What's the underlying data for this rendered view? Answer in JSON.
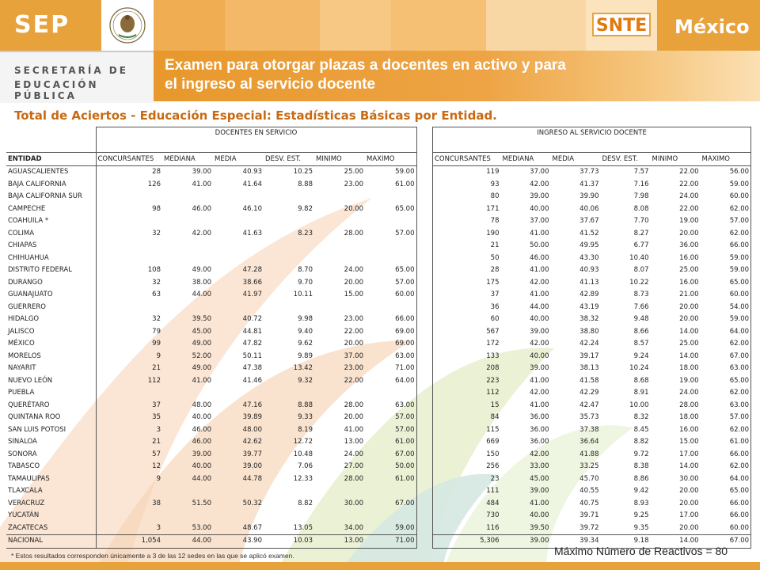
{
  "header": {
    "sep": "SEP",
    "secretaria_line1": "SECRETARÍA DE",
    "secretaria_line2": "EDUCACIÓN PÚBLICA",
    "snte": "SNTE",
    "mexico": "México",
    "title_line1": "Examen para otorgar plazas a docentes en activo y para",
    "title_line2": "el ingreso al servicio docente"
  },
  "subtitle": "Total de Aciertos - Educación Especial: Estadísticas Básicas por Entidad.",
  "table1": {
    "group": "DOCENTES EN SERVICIO",
    "columns": [
      "ENTIDAD",
      "CONCURSANTES",
      "MEDIANA",
      "MEDIA",
      "DESV. EST.",
      "MINIMO",
      "MAXIMO"
    ],
    "rows": [
      [
        "AGUASCALIENTES",
        "28",
        "39.00",
        "40.93",
        "10.25",
        "25.00",
        "59.00"
      ],
      [
        "BAJA CALIFORNIA",
        "126",
        "41.00",
        "41.64",
        "8.88",
        "23.00",
        "61.00"
      ],
      [
        "BAJA CALIFORNIA SUR",
        "",
        "",
        "",
        "",
        "",
        ""
      ],
      [
        "CAMPECHE",
        "98",
        "46.00",
        "46.10",
        "9.82",
        "20.00",
        "65.00"
      ],
      [
        "COAHUILA *",
        "",
        "",
        "",
        "",
        "",
        ""
      ],
      [
        "COLIMA",
        "32",
        "42.00",
        "41.63",
        "8.23",
        "28.00",
        "57.00"
      ],
      [
        "CHIAPAS",
        "",
        "",
        "",
        "",
        "",
        ""
      ],
      [
        "CHIHUAHUA",
        "",
        "",
        "",
        "",
        "",
        ""
      ],
      [
        "DISTRITO FEDERAL",
        "108",
        "49.00",
        "47.28",
        "8.70",
        "24.00",
        "65.00"
      ],
      [
        "DURANGO",
        "32",
        "38.00",
        "38.66",
        "9.70",
        "20.00",
        "57.00"
      ],
      [
        "GUANAJUATO",
        "63",
        "44.00",
        "41.97",
        "10.11",
        "15.00",
        "60.00"
      ],
      [
        "GUERRERO",
        "",
        "",
        "",
        "",
        "",
        ""
      ],
      [
        "HIDALGO",
        "32",
        "39.50",
        "40.72",
        "9.98",
        "23.00",
        "66.00"
      ],
      [
        "JALISCO",
        "79",
        "45.00",
        "44.81",
        "9.40",
        "22.00",
        "69.00"
      ],
      [
        "MÉXICO",
        "99",
        "49.00",
        "47.82",
        "9.62",
        "20.00",
        "69.00"
      ],
      [
        "MORELOS",
        "9",
        "52.00",
        "50.11",
        "9.89",
        "37.00",
        "63.00"
      ],
      [
        "NAYARIT",
        "21",
        "49.00",
        "47.38",
        "13.42",
        "23.00",
        "71.00"
      ],
      [
        "NUEVO LEÓN",
        "112",
        "41.00",
        "41.46",
        "9.32",
        "22.00",
        "64.00"
      ],
      [
        "PUEBLA",
        "",
        "",
        "",
        "",
        "",
        ""
      ],
      [
        "QUERÉTARO",
        "37",
        "48.00",
        "47.16",
        "8.88",
        "28.00",
        "63.00"
      ],
      [
        "QUINTANA ROO",
        "35",
        "40.00",
        "39.89",
        "9.33",
        "20.00",
        "57.00"
      ],
      [
        "SAN LUIS POTOSI",
        "3",
        "46.00",
        "48.00",
        "8.19",
        "41.00",
        "57.00"
      ],
      [
        "SINALOA",
        "21",
        "46.00",
        "42.62",
        "12.72",
        "13.00",
        "61.00"
      ],
      [
        "SONORA",
        "57",
        "39.00",
        "39.77",
        "10.48",
        "24.00",
        "67.00"
      ],
      [
        "TABASCO",
        "12",
        "40.00",
        "39.00",
        "7.06",
        "27.00",
        "50.00"
      ],
      [
        "TAMAULIPAS",
        "9",
        "44.00",
        "44.78",
        "12.33",
        "28.00",
        "61.00"
      ],
      [
        "TLAXCALA",
        "",
        "",
        "",
        "",
        "",
        ""
      ],
      [
        "VERACRUZ",
        "38",
        "51.50",
        "50.32",
        "8.82",
        "30.00",
        "67.00"
      ],
      [
        "YUCATÁN",
        "",
        "",
        "",
        "",
        "",
        ""
      ],
      [
        "ZACATECAS",
        "3",
        "53.00",
        "48.67",
        "13.05",
        "34.00",
        "59.00"
      ]
    ],
    "total": [
      "NACIONAL",
      "1,054",
      "44.00",
      "43.90",
      "10.03",
      "13.00",
      "71.00"
    ]
  },
  "table2": {
    "group": "INGRESO AL SERVICIO DOCENTE",
    "columns": [
      "CONCURSANTES",
      "MEDIANA",
      "MEDIA",
      "DESV. EST.",
      "MINIMO",
      "MAXIMO"
    ],
    "rows": [
      [
        "119",
        "37.00",
        "37.73",
        "7.57",
        "22.00",
        "56.00"
      ],
      [
        "93",
        "42.00",
        "41.37",
        "7.16",
        "22.00",
        "59.00"
      ],
      [
        "80",
        "39.00",
        "39.90",
        "7.98",
        "24.00",
        "60.00"
      ],
      [
        "171",
        "40.00",
        "40.06",
        "8.08",
        "22.00",
        "62.00"
      ],
      [
        "78",
        "37.00",
        "37.67",
        "7.70",
        "19.00",
        "57.00"
      ],
      [
        "190",
        "41.00",
        "41.52",
        "8.27",
        "20.00",
        "62.00"
      ],
      [
        "21",
        "50.00",
        "49.95",
        "6.77",
        "36.00",
        "66.00"
      ],
      [
        "50",
        "46.00",
        "43.30",
        "10.40",
        "16.00",
        "59.00"
      ],
      [
        "28",
        "41.00",
        "40.93",
        "8.07",
        "25.00",
        "59.00"
      ],
      [
        "175",
        "42.00",
        "41.13",
        "10.22",
        "16.00",
        "65.00"
      ],
      [
        "37",
        "41.00",
        "42.89",
        "8.73",
        "21.00",
        "60.00"
      ],
      [
        "36",
        "44.00",
        "43.19",
        "7.66",
        "20.00",
        "54.00"
      ],
      [
        "60",
        "40.00",
        "38.32",
        "9.48",
        "20.00",
        "59.00"
      ],
      [
        "567",
        "39.00",
        "38.80",
        "8.66",
        "14.00",
        "64.00"
      ],
      [
        "172",
        "42.00",
        "42.24",
        "8.57",
        "25.00",
        "62.00"
      ],
      [
        "133",
        "40.00",
        "39.17",
        "9.24",
        "14.00",
        "67.00"
      ],
      [
        "208",
        "39.00",
        "38.13",
        "10.24",
        "18.00",
        "63.00"
      ],
      [
        "223",
        "41.00",
        "41.58",
        "8.68",
        "19.00",
        "65.00"
      ],
      [
        "112",
        "42.00",
        "42.29",
        "8.91",
        "24.00",
        "62.00"
      ],
      [
        "15",
        "41.00",
        "42.47",
        "10.00",
        "28.00",
        "63.00"
      ],
      [
        "84",
        "36.00",
        "35.73",
        "8.32",
        "18.00",
        "57.00"
      ],
      [
        "115",
        "36.00",
        "37.38",
        "8.45",
        "16.00",
        "62.00"
      ],
      [
        "669",
        "36.00",
        "36.64",
        "8.82",
        "15.00",
        "61.00"
      ],
      [
        "150",
        "42.00",
        "41.88",
        "9.72",
        "17.00",
        "66.00"
      ],
      [
        "256",
        "33.00",
        "33.25",
        "8.38",
        "14.00",
        "62.00"
      ],
      [
        "23",
        "45.00",
        "45.70",
        "8.86",
        "30.00",
        "64.00"
      ],
      [
        "111",
        "39.00",
        "40.55",
        "9.42",
        "20.00",
        "65.00"
      ],
      [
        "484",
        "41.00",
        "40.75",
        "8.93",
        "20.00",
        "66.00"
      ],
      [
        "730",
        "40.00",
        "39.71",
        "9.25",
        "17.00",
        "66.00"
      ],
      [
        "116",
        "39.50",
        "39.72",
        "9.35",
        "20.00",
        "60.00"
      ]
    ],
    "total": [
      "5,306",
      "39.00",
      "39.34",
      "9.18",
      "14.00",
      "67.00"
    ]
  },
  "footnote": "* Estos resultados corresponden únicamente a 3 de las 12 sedes en las que se aplicó examen.",
  "max_reactivos": "Máximo Número de Reactivos =  80",
  "colors": {
    "orange": "#e8a23c",
    "title_bar": "#ee9d3a",
    "subtitle": "#c86a12"
  }
}
